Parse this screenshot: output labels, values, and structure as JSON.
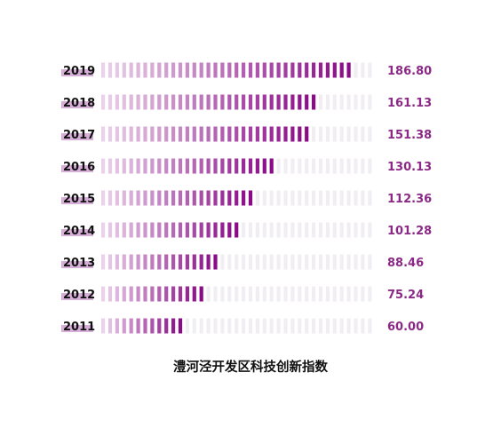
{
  "chart_data": {
    "type": "bar",
    "title": "澧河泾开发区科技创新指数",
    "xlabel": "",
    "ylabel": "",
    "xlim": [
      0,
      200
    ],
    "orientation": "horizontal",
    "grid": false,
    "legend": "none",
    "categories": [
      "2019",
      "2018",
      "2017",
      "2016",
      "2015",
      "2014",
      "2013",
      "2012",
      "2011"
    ],
    "values": [
      186.8,
      161.13,
      151.38,
      130.13,
      112.36,
      101.28,
      88.46,
      75.24,
      60.0
    ],
    "value_labels": [
      "186.80",
      "161.13",
      "151.38",
      "130.13",
      "112.36",
      "101.28",
      "88.46",
      "75.24",
      "60.00"
    ]
  },
  "colors": {
    "light": "#ead3ea",
    "dark": "#8a0a88",
    "track": "#f1eef3",
    "label_highlight": "#d6aed8",
    "value_text": "#8b2a86",
    "year_text": "#111111",
    "title_text": "#111111"
  }
}
